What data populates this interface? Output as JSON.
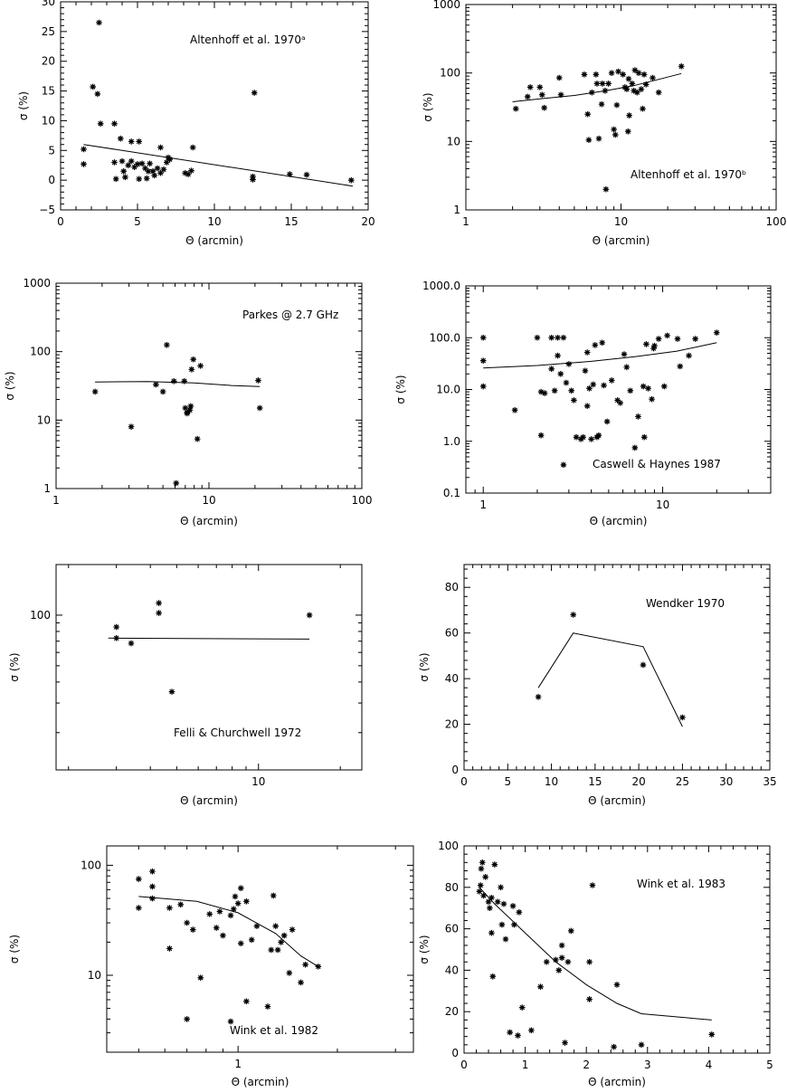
{
  "chart_data": [
    {
      "type": "scatter",
      "annotation": "Altenhoff et al. 1970ᵃ",
      "xlabel": "Θ (arcmin)",
      "ylabel": "σ (%)",
      "xscale": "linear",
      "yscale": "linear",
      "xlim": [
        0,
        20
      ],
      "ylim": [
        -5,
        30
      ],
      "xticks": [
        0,
        5,
        10,
        15,
        20
      ],
      "yticks": [
        -5,
        0,
        5,
        10,
        15,
        20,
        25,
        30
      ],
      "xticklabels": [
        "0",
        "5",
        "10",
        "15",
        "20"
      ],
      "yticklabels": [
        "−5",
        "0",
        "5",
        "10",
        "15",
        "20",
        "25",
        "30"
      ],
      "points": [
        [
          1.5,
          5.2
        ],
        [
          1.5,
          2.7
        ],
        [
          2.1,
          15.7
        ],
        [
          2.4,
          14.5
        ],
        [
          2.5,
          26.5
        ],
        [
          2.6,
          9.5
        ],
        [
          3.5,
          9.5
        ],
        [
          3.5,
          3.0
        ],
        [
          3.6,
          0.2
        ],
        [
          3.9,
          7.0
        ],
        [
          4.0,
          3.2
        ],
        [
          4.1,
          1.5
        ],
        [
          4.2,
          0.5
        ],
        [
          4.4,
          2.5
        ],
        [
          4.6,
          6.5
        ],
        [
          4.6,
          3.2
        ],
        [
          4.8,
          2.2
        ],
        [
          5.0,
          2.7
        ],
        [
          5.1,
          0.2
        ],
        [
          5.1,
          6.5
        ],
        [
          5.3,
          2.8
        ],
        [
          5.5,
          2.0
        ],
        [
          5.6,
          0.3
        ],
        [
          5.7,
          1.5
        ],
        [
          5.8,
          2.8
        ],
        [
          6.0,
          1.5
        ],
        [
          6.1,
          0.8
        ],
        [
          6.3,
          2.0
        ],
        [
          6.5,
          5.5
        ],
        [
          6.5,
          1.2
        ],
        [
          6.7,
          1.8
        ],
        [
          6.9,
          3.0
        ],
        [
          7.0,
          3.8
        ],
        [
          7.1,
          3.5
        ],
        [
          8.1,
          1.2
        ],
        [
          8.3,
          1.0
        ],
        [
          8.5,
          1.6
        ],
        [
          8.6,
          5.5
        ],
        [
          12.5,
          0.6
        ],
        [
          12.5,
          0.1
        ],
        [
          12.6,
          14.7
        ],
        [
          14.9,
          1.0
        ],
        [
          16.0,
          0.9
        ],
        [
          18.9,
          0.0
        ]
      ],
      "fit": [
        [
          1.5,
          6.0
        ],
        [
          19.0,
          -1.0
        ]
      ]
    },
    {
      "type": "scatter",
      "annotation": "Altenhoff et al. 1970ᵇ",
      "xlabel": "Θ (arcmin)",
      "ylabel": "σ (%)",
      "xscale": "log",
      "yscale": "log",
      "xlim": [
        1,
        100
      ],
      "ylim": [
        1,
        1000
      ],
      "xticks": [
        1,
        10,
        100
      ],
      "yticks": [
        1,
        10,
        100,
        1000
      ],
      "xticklabels": [
        "1",
        "10",
        "100"
      ],
      "yticklabels": [
        "1",
        "10",
        "100",
        "1000"
      ],
      "points": [
        [
          2.1,
          30
        ],
        [
          2.5,
          45
        ],
        [
          2.6,
          62
        ],
        [
          3.0,
          62
        ],
        [
          3.1,
          48
        ],
        [
          3.2,
          31
        ],
        [
          4.0,
          85
        ],
        [
          4.1,
          48
        ],
        [
          5.8,
          95
        ],
        [
          6.1,
          25
        ],
        [
          6.2,
          10.5
        ],
        [
          6.5,
          52
        ],
        [
          6.9,
          95
        ],
        [
          7.0,
          70
        ],
        [
          7.2,
          11
        ],
        [
          7.5,
          35
        ],
        [
          7.6,
          70
        ],
        [
          7.9,
          55
        ],
        [
          8.0,
          2
        ],
        [
          8.3,
          70
        ],
        [
          8.7,
          100
        ],
        [
          9.0,
          15
        ],
        [
          9.2,
          12.5
        ],
        [
          9.4,
          34
        ],
        [
          9.6,
          105
        ],
        [
          10.3,
          95
        ],
        [
          10.6,
          62
        ],
        [
          10.9,
          58
        ],
        [
          11.1,
          14
        ],
        [
          11.2,
          82
        ],
        [
          11.3,
          24
        ],
        [
          11.8,
          70
        ],
        [
          12.1,
          55
        ],
        [
          12.3,
          110
        ],
        [
          12.7,
          52
        ],
        [
          13.0,
          100
        ],
        [
          13.5,
          58
        ],
        [
          13.8,
          30
        ],
        [
          14.1,
          95
        ],
        [
          14.5,
          68
        ],
        [
          16.0,
          85
        ],
        [
          17.5,
          52
        ],
        [
          24.5,
          125
        ]
      ],
      "fit": [
        [
          2.0,
          38
        ],
        [
          3,
          42
        ],
        [
          5,
          47
        ],
        [
          8,
          55
        ],
        [
          12,
          65
        ],
        [
          18,
          82
        ],
        [
          24.5,
          98
        ]
      ]
    },
    {
      "type": "scatter",
      "annotation": "Parkes @ 2.7 GHz",
      "xlabel": "Θ (arcmin)",
      "ylabel": "σ (%)",
      "xscale": "log",
      "yscale": "log",
      "xlim": [
        1,
        100
      ],
      "ylim": [
        1,
        1000
      ],
      "xticks": [
        1,
        10,
        100
      ],
      "yticks": [
        1,
        10,
        100,
        1000
      ],
      "xticklabels": [
        "1",
        "10",
        "100"
      ],
      "yticklabels": [
        "1",
        "10",
        "100",
        "1000"
      ],
      "points": [
        [
          1.8,
          26
        ],
        [
          3.1,
          8
        ],
        [
          4.5,
          33
        ],
        [
          5.0,
          26
        ],
        [
          5.3,
          125
        ],
        [
          5.9,
          37
        ],
        [
          6.1,
          1.2
        ],
        [
          6.9,
          37
        ],
        [
          7.0,
          15
        ],
        [
          7.2,
          12.5
        ],
        [
          7.2,
          13
        ],
        [
          7.5,
          14
        ],
        [
          7.6,
          16
        ],
        [
          7.7,
          55
        ],
        [
          7.9,
          77
        ],
        [
          8.4,
          5.3
        ],
        [
          8.8,
          62
        ],
        [
          21.0,
          38
        ],
        [
          21.5,
          15
        ]
      ],
      "fit": [
        [
          1.8,
          36
        ],
        [
          4,
          36.5
        ],
        [
          8,
          35
        ],
        [
          14,
          32
        ],
        [
          21.5,
          31
        ]
      ]
    },
    {
      "type": "scatter",
      "annotation": "Caswell & Haynes 1987",
      "xlabel": "Θ (arcmin)",
      "ylabel": "σ (%)",
      "xscale": "log",
      "yscale": "log",
      "xlim": [
        0.8,
        40
      ],
      "ylim": [
        0.1,
        1000
      ],
      "xticks": [
        1,
        10
      ],
      "yticks": [
        0.1,
        1,
        10,
        100,
        1000
      ],
      "xticklabels": [
        "1",
        "10"
      ],
      "yticklabels": [
        "0.1",
        "1.0",
        "10.0",
        "100.0",
        "1000.0"
      ],
      "points": [
        [
          1.0,
          100
        ],
        [
          1.0,
          36
        ],
        [
          1.0,
          11.5
        ],
        [
          1.5,
          4
        ],
        [
          2.0,
          100
        ],
        [
          2.1,
          9
        ],
        [
          2.1,
          1.3
        ],
        [
          2.2,
          8.5
        ],
        [
          2.4,
          100
        ],
        [
          2.4,
          25
        ],
        [
          2.5,
          9.5
        ],
        [
          2.6,
          45
        ],
        [
          2.6,
          100
        ],
        [
          2.7,
          20
        ],
        [
          2.8,
          0.35
        ],
        [
          2.8,
          100
        ],
        [
          2.9,
          13.5
        ],
        [
          3.0,
          31
        ],
        [
          3.1,
          9.5
        ],
        [
          3.2,
          6.2
        ],
        [
          3.3,
          1.2
        ],
        [
          3.5,
          1.1
        ],
        [
          3.6,
          1.2
        ],
        [
          3.7,
          23
        ],
        [
          3.8,
          4.8
        ],
        [
          3.8,
          52
        ],
        [
          3.9,
          10.5
        ],
        [
          4.0,
          1.1
        ],
        [
          4.1,
          12.5
        ],
        [
          4.2,
          72
        ],
        [
          4.3,
          1.2
        ],
        [
          4.4,
          1.3
        ],
        [
          4.6,
          80
        ],
        [
          4.7,
          12
        ],
        [
          4.9,
          2.4
        ],
        [
          5.2,
          15
        ],
        [
          5.6,
          6.2
        ],
        [
          5.8,
          5.5
        ],
        [
          6.1,
          48
        ],
        [
          6.3,
          27
        ],
        [
          6.6,
          9.5
        ],
        [
          7.0,
          0.75
        ],
        [
          7.3,
          3
        ],
        [
          7.8,
          11.5
        ],
        [
          7.9,
          1.2
        ],
        [
          8.1,
          75
        ],
        [
          8.3,
          10.5
        ],
        [
          8.7,
          6.5
        ],
        [
          8.9,
          62
        ],
        [
          9.0,
          70
        ],
        [
          9.5,
          95
        ],
        [
          10.2,
          11.5
        ],
        [
          10.6,
          110
        ],
        [
          12.1,
          95
        ],
        [
          12.5,
          28
        ],
        [
          14.0,
          45
        ],
        [
          15.2,
          95
        ],
        [
          20.0,
          125
        ]
      ],
      "fit": [
        [
          1.0,
          26
        ],
        [
          2,
          29
        ],
        [
          4,
          35
        ],
        [
          7,
          43
        ],
        [
          12,
          55
        ],
        [
          20,
          80
        ]
      ]
    },
    {
      "type": "scatter",
      "annotation": "Felli & Churchwell 1972",
      "xlabel": "Θ (arcmin)",
      "ylabel": "σ (%)",
      "xscale": "log",
      "yscale": "log",
      "xlim": [
        1.8,
        24
      ],
      "ylim": [
        12,
        200
      ],
      "xticks": [
        10
      ],
      "yticks": [
        100
      ],
      "xticklabels": [
        "10"
      ],
      "yticklabels": [
        "100"
      ],
      "points": [
        [
          3.0,
          85
        ],
        [
          3.0,
          73
        ],
        [
          3.4,
          68
        ],
        [
          4.3,
          118
        ],
        [
          4.3,
          103
        ],
        [
          4.8,
          35
        ],
        [
          15.4,
          100
        ]
      ],
      "fit": [
        [
          2.8,
          73
        ],
        [
          15.4,
          72
        ]
      ]
    },
    {
      "type": "scatter",
      "annotation": "Wendker 1970",
      "xlabel": "Θ  (arcmin)",
      "ylabel": "σ (%)",
      "xscale": "linear",
      "yscale": "linear",
      "xlim": [
        0,
        35
      ],
      "ylim": [
        0,
        90
      ],
      "xticks": [
        0,
        5,
        10,
        15,
        20,
        25,
        30,
        35
      ],
      "yticks": [
        0,
        20,
        40,
        60,
        80
      ],
      "xticklabels": [
        "0",
        "5",
        "10",
        "15",
        "20",
        "25",
        "30",
        "35"
      ],
      "yticklabels": [
        "0",
        "20",
        "40",
        "60",
        "80"
      ],
      "points": [
        [
          8.5,
          32
        ],
        [
          12.5,
          68
        ],
        [
          20.5,
          46
        ],
        [
          25.0,
          23
        ]
      ],
      "fit": [
        [
          8.5,
          36
        ],
        [
          12.5,
          60
        ],
        [
          20.5,
          54
        ],
        [
          25.0,
          19
        ]
      ]
    },
    {
      "type": "scatter",
      "annotation": "Wink et al. 1982",
      "xlabel": "Θ  (arcmin)",
      "ylabel": "σ (%)",
      "xscale": "log",
      "yscale": "log",
      "xlim": [
        0.4,
        3.4
      ],
      "ylim": [
        2.0,
        150
      ],
      "xticks": [
        1
      ],
      "yticks": [
        10,
        100
      ],
      "xticklabels": [
        "1"
      ],
      "yticklabels": [
        "10",
        "100"
      ],
      "points": [
        [
          0.5,
          41
        ],
        [
          0.5,
          75
        ],
        [
          0.55,
          50
        ],
        [
          0.55,
          64
        ],
        [
          0.55,
          88
        ],
        [
          0.62,
          17.5
        ],
        [
          0.62,
          41
        ],
        [
          0.67,
          44
        ],
        [
          0.7,
          30
        ],
        [
          0.7,
          4
        ],
        [
          0.73,
          26
        ],
        [
          0.77,
          9.5
        ],
        [
          0.82,
          36
        ],
        [
          0.86,
          27
        ],
        [
          0.88,
          38
        ],
        [
          0.9,
          23
        ],
        [
          0.95,
          35
        ],
        [
          0.95,
          3.8
        ],
        [
          0.97,
          40
        ],
        [
          0.98,
          52
        ],
        [
          1.0,
          45
        ],
        [
          1.02,
          62
        ],
        [
          1.02,
          19.5
        ],
        [
          1.06,
          47
        ],
        [
          1.06,
          5.8
        ],
        [
          1.1,
          21
        ],
        [
          1.14,
          28
        ],
        [
          1.23,
          5.2
        ],
        [
          1.26,
          17
        ],
        [
          1.28,
          53
        ],
        [
          1.3,
          28
        ],
        [
          1.32,
          17
        ],
        [
          1.35,
          20
        ],
        [
          1.38,
          23
        ],
        [
          1.43,
          10.5
        ],
        [
          1.46,
          26
        ],
        [
          1.55,
          8.6
        ],
        [
          1.6,
          12.5
        ],
        [
          1.75,
          12
        ]
      ],
      "fit": [
        [
          0.5,
          52
        ],
        [
          0.75,
          47
        ],
        [
          1.0,
          37
        ],
        [
          1.3,
          24
        ],
        [
          1.55,
          15
        ],
        [
          1.75,
          12
        ]
      ]
    },
    {
      "type": "scatter",
      "annotation": "Wink et al. 1983",
      "xlabel": "Θ  (arcmin)",
      "ylabel": "σ (%)",
      "xscale": "linear",
      "yscale": "linear",
      "xlim": [
        0,
        5
      ],
      "ylim": [
        0,
        100
      ],
      "xticks": [
        0,
        1,
        2,
        3,
        4,
        5
      ],
      "yticks": [
        0,
        20,
        40,
        60,
        80,
        100
      ],
      "xticklabels": [
        "0",
        "1",
        "2",
        "3",
        "4",
        "5"
      ],
      "yticklabels": [
        "0",
        "20",
        "40",
        "60",
        "80",
        "100"
      ],
      "points": [
        [
          0.25,
          78
        ],
        [
          0.27,
          81
        ],
        [
          0.28,
          89
        ],
        [
          0.3,
          92
        ],
        [
          0.32,
          76
        ],
        [
          0.35,
          85
        ],
        [
          0.4,
          73
        ],
        [
          0.42,
          70
        ],
        [
          0.45,
          75
        ],
        [
          0.45,
          58
        ],
        [
          0.47,
          37
        ],
        [
          0.5,
          91
        ],
        [
          0.55,
          73
        ],
        [
          0.6,
          80
        ],
        [
          0.62,
          62
        ],
        [
          0.65,
          72
        ],
        [
          0.68,
          55
        ],
        [
          0.75,
          10
        ],
        [
          0.8,
          71
        ],
        [
          0.82,
          62
        ],
        [
          0.88,
          8.5
        ],
        [
          0.9,
          68
        ],
        [
          0.95,
          22
        ],
        [
          1.1,
          11
        ],
        [
          1.25,
          32
        ],
        [
          1.35,
          44
        ],
        [
          1.5,
          45
        ],
        [
          1.55,
          40
        ],
        [
          1.6,
          46
        ],
        [
          1.6,
          52
        ],
        [
          1.65,
          5
        ],
        [
          1.7,
          44
        ],
        [
          1.75,
          59
        ],
        [
          2.05,
          44
        ],
        [
          2.05,
          26
        ],
        [
          2.1,
          81
        ],
        [
          2.45,
          3
        ],
        [
          2.5,
          33
        ],
        [
          2.9,
          4
        ],
        [
          4.05,
          9
        ]
      ],
      "fit": [
        [
          0.25,
          80
        ],
        [
          0.5,
          72
        ],
        [
          1.0,
          58
        ],
        [
          1.5,
          44
        ],
        [
          2.0,
          33
        ],
        [
          2.5,
          24
        ],
        [
          2.9,
          19
        ],
        [
          4.05,
          16
        ]
      ]
    }
  ]
}
